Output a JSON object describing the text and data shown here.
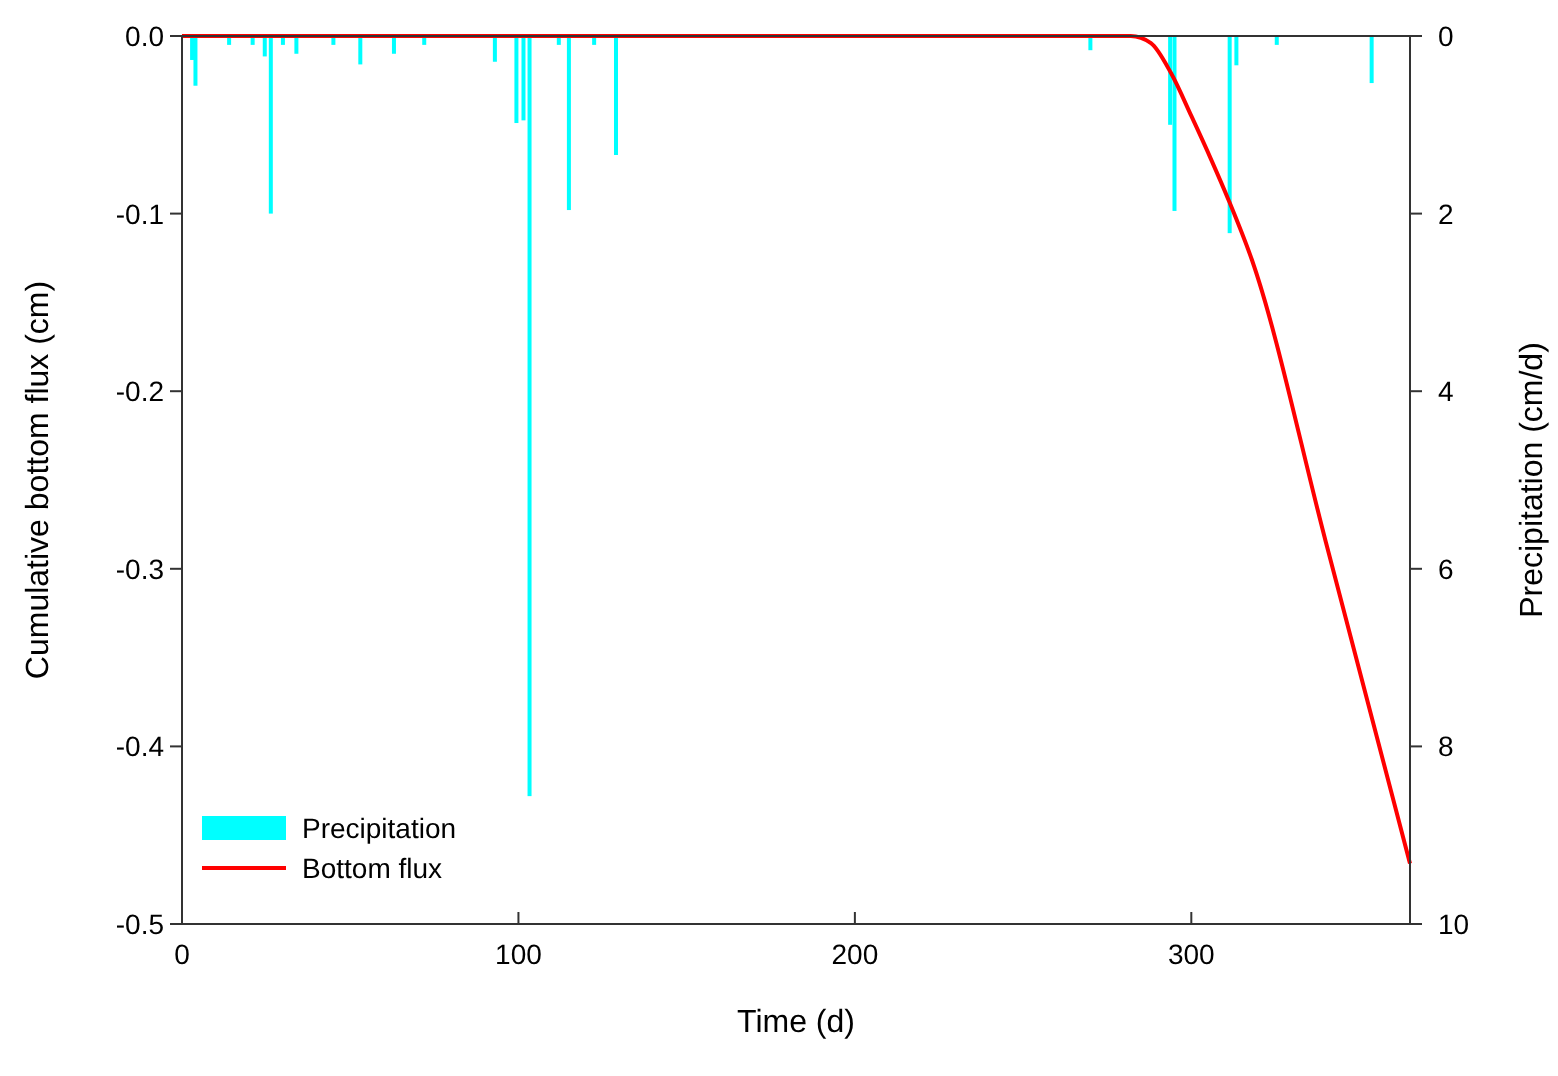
{
  "chart_data": {
    "type": "line",
    "xlabel": "Time (d)",
    "ylabel": "Cumulative bottom flux (cm)",
    "y2label": "Precipitation (cm/d)",
    "xlim": [
      0,
      365
    ],
    "xticks": [
      0,
      100,
      200,
      300
    ],
    "ylim": [
      -0.5,
      0
    ],
    "yticks": [
      {
        "value": -0.5,
        "label": "-0.5"
      },
      {
        "value": -0.4,
        "label": "-0.4"
      },
      {
        "value": -0.3,
        "label": "-0.3"
      },
      {
        "value": -0.2,
        "label": "-0.2"
      },
      {
        "value": -0.1,
        "label": "-0.1"
      },
      {
        "value": 0,
        "label": "0.0"
      }
    ],
    "y2lim": [
      10,
      0
    ],
    "y2ticks": [
      0,
      2,
      4,
      6,
      8,
      10
    ],
    "legend": "bottom left",
    "grid": false,
    "series": [
      {
        "name": "Precipitation",
        "type": "bar",
        "axis": "y2",
        "color": "#00ffff",
        "x": [
          3,
          4,
          14,
          21,
          24.6,
          26.4,
          30,
          34,
          45,
          53,
          63,
          72,
          93,
          99.4,
          101.5,
          103.3,
          112,
          115,
          122.5,
          129,
          270,
          293.7,
          295,
          311.4,
          313.4,
          325.4,
          353.6
        ],
        "values": [
          0.27,
          0.56,
          0.1,
          0.1,
          0.23,
          2.0,
          0.1,
          0.2,
          0.1,
          0.32,
          0.2,
          0.1,
          0.29,
          0.98,
          0.95,
          8.56,
          0.1,
          1.96,
          0.1,
          1.34,
          0.16,
          1.0,
          1.97,
          2.22,
          0.33,
          0.1,
          0.53
        ]
      },
      {
        "name": "Bottom flux",
        "color": "#ff0000",
        "x": [
          0,
          100,
          200,
          282,
          288,
          294,
          300,
          306,
          311,
          318,
          340,
          365
        ],
        "values": [
          0,
          0,
          0,
          0,
          -0.004,
          -0.021,
          -0.045,
          -0.07,
          -0.092,
          -0.126,
          -0.285,
          -0.466
        ]
      }
    ]
  }
}
